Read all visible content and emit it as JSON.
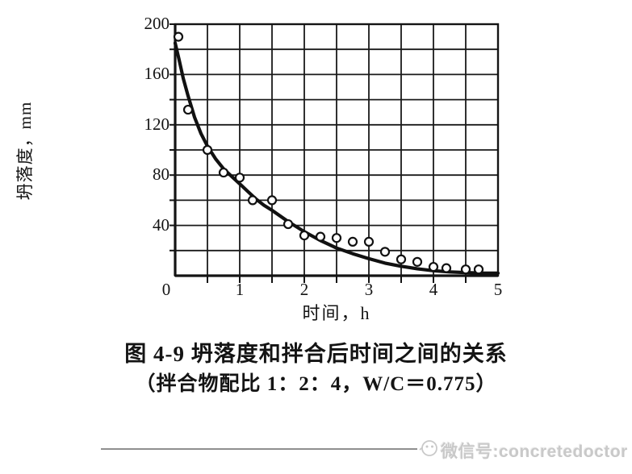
{
  "chart_data": {
    "type": "scatter",
    "title": "图 4-9  坍落度和拌合后时间之间的关系",
    "subtitle": "（拌合物配比 1：2：4，W/C＝0.775）",
    "xlabel": "时间，h",
    "ylabel": "坍落度，mm",
    "xlim": [
      0,
      5
    ],
    "ylim": [
      0,
      200
    ],
    "x_ticks": [
      0,
      1,
      2,
      3,
      4,
      5
    ],
    "x_tick_labels": [
      "0",
      "1",
      "2",
      "3",
      "4",
      "5"
    ],
    "x_minor_step": 0.5,
    "y_ticks": [
      200,
      160,
      120,
      80,
      40
    ],
    "y_tick_labels": [
      "200",
      "160",
      "120",
      "80",
      "40"
    ],
    "y_minor_step": 20,
    "grid": "minor gridlines both axes, full box border",
    "legend": "none",
    "marker": "open-circle",
    "points": [
      [
        0.05,
        190
      ],
      [
        0.2,
        132
      ],
      [
        0.5,
        100
      ],
      [
        0.75,
        82
      ],
      [
        1.0,
        78
      ],
      [
        1.2,
        60
      ],
      [
        1.5,
        60
      ],
      [
        1.75,
        41
      ],
      [
        2.0,
        32
      ],
      [
        2.25,
        31
      ],
      [
        2.5,
        30
      ],
      [
        2.75,
        27
      ],
      [
        3.0,
        27
      ],
      [
        3.25,
        19
      ],
      [
        3.5,
        13
      ],
      [
        3.75,
        11
      ],
      [
        4.0,
        7
      ],
      [
        4.2,
        6
      ],
      [
        4.5,
        5
      ],
      [
        4.7,
        5
      ]
    ],
    "curve": [
      [
        0,
        185
      ],
      [
        0.06,
        172
      ],
      [
        0.125,
        157
      ],
      [
        0.2,
        143
      ],
      [
        0.3,
        126
      ],
      [
        0.4,
        113
      ],
      [
        0.5,
        103
      ],
      [
        0.625,
        93
      ],
      [
        0.75,
        85
      ],
      [
        0.875,
        79
      ],
      [
        1.0,
        73
      ],
      [
        1.125,
        67
      ],
      [
        1.25,
        61
      ],
      [
        1.375,
        56
      ],
      [
        1.5,
        52
      ],
      [
        1.75,
        43
      ],
      [
        2.0,
        35
      ],
      [
        2.25,
        28
      ],
      [
        2.5,
        22
      ],
      [
        2.75,
        17.5
      ],
      [
        3.0,
        13.5
      ],
      [
        3.25,
        10
      ],
      [
        3.5,
        7.5
      ],
      [
        3.75,
        5.5
      ],
      [
        4.0,
        4
      ],
      [
        4.25,
        3
      ],
      [
        4.5,
        2.5
      ],
      [
        4.75,
        2
      ],
      [
        5.0,
        2
      ]
    ],
    "colors": {
      "ink": "#141414",
      "grid": "#1a1a1a",
      "curve": "#111111",
      "marker_stroke": "#111111",
      "marker_fill": "#ffffff",
      "background": "#ffffff"
    }
  },
  "footer": {
    "watermark": "微信号:concretedoctor",
    "icon": "wechat-logo",
    "rule_color": "#8f8f8f",
    "text_color": "#c9c9c9"
  }
}
